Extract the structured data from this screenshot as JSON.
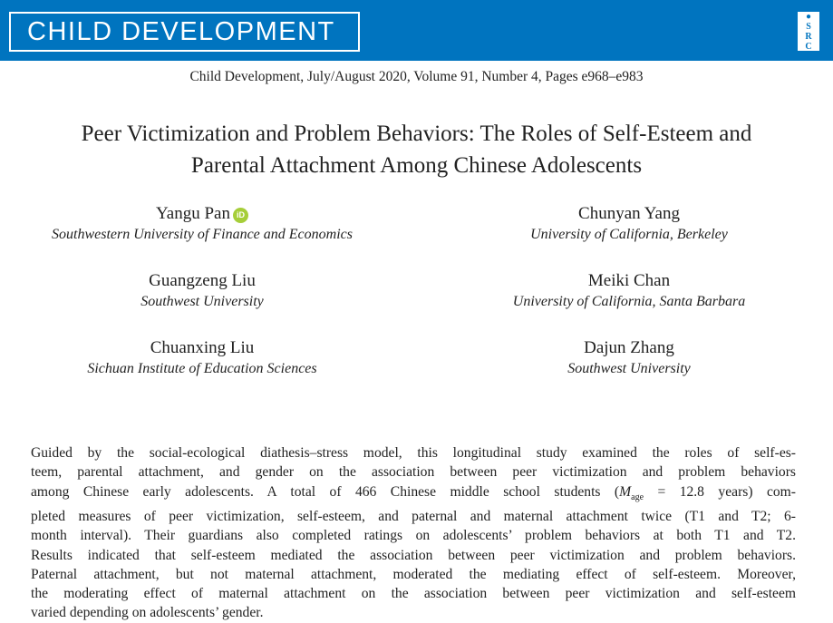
{
  "header": {
    "journal": "CHILD DEVELOPMENT",
    "logo_text": "SRCD",
    "brand_color": "#0074bf"
  },
  "citation": "Child Development, July/August 2020, Volume 91, Number 4, Pages e968–e983",
  "title": [
    "Peer Victimization and Problem Behaviors: The Roles of Self-Esteem and",
    "Parental Attachment Among Chinese Adolescents"
  ],
  "authors": [
    {
      "name": "Yangu Pan",
      "affiliation": "Southwestern University of Finance and Economics",
      "orcid": "iD"
    },
    {
      "name": "Chunyan Yang",
      "affiliation": "University of California, Berkeley"
    },
    {
      "name": "Guangzeng Liu",
      "affiliation": "Southwest University"
    },
    {
      "name": "Meiki Chan",
      "affiliation": "University of California, Santa Barbara"
    },
    {
      "name": "Chuanxing Liu",
      "affiliation": "Sichuan Institute of Education Sciences"
    },
    {
      "name": "Dajun Zhang",
      "affiliation": "Southwest University"
    }
  ],
  "abstract": {
    "lines": [
      "Guided by the social-ecological diathesis–stress model, this longitudinal study examined the roles of self-es-",
      "teem, parental attachment, and gender on the association between peer victimization and problem behaviors",
      "among Chinese early adolescents. A total of 466 Chinese middle school students (",
      "pleted measures of peer victimization, self-esteem, and paternal and maternal attachment twice (T1 and T2; 6-",
      "month interval). Their guardians also completed ratings on adolescents’ problem behaviors at both T1 and T2.",
      "Results indicated that self-esteem mediated the association between peer victimization and problem behaviors.",
      "Paternal attachment, but not maternal attachment, moderated the mediating effect of self-esteem. Moreover,",
      "the moderating effect of maternal attachment on the association between peer victimization and self-esteem",
      "varied depending on adolescents’ gender."
    ],
    "m_symbol": "M",
    "m_sub": "age",
    "line3_tail": " = 12.8 years) com-"
  }
}
